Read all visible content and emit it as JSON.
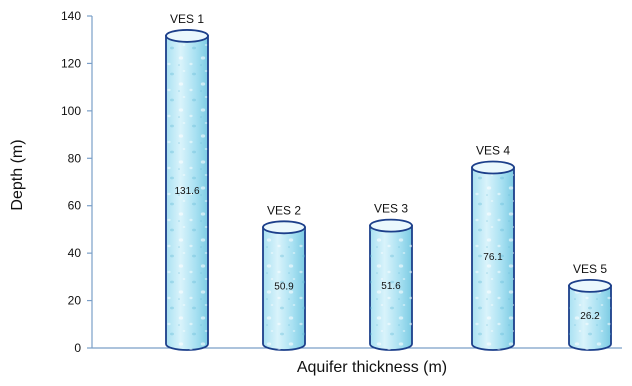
{
  "chart_data": {
    "type": "bar",
    "style": "cylinder",
    "categories": [
      "VES 1",
      "VES 2",
      "VES 3",
      "VES 4",
      "VES 5"
    ],
    "values": [
      131.6,
      50.9,
      51.6,
      76.1,
      26.2
    ],
    "value_labels": [
      "131.6",
      "50.9",
      "51.6",
      "76.1",
      "26.2"
    ],
    "xlabel": "Aquifer thickness (m)",
    "ylabel": "Depth (m)",
    "ylim": [
      0,
      140
    ],
    "yticks": [
      0,
      20,
      40,
      60,
      80,
      100,
      120,
      140
    ],
    "grid": false,
    "legend": "none",
    "colors": {
      "fill_light": "#d9f3fb",
      "fill_mid": "#a9e1f2",
      "fill_dark": "#7ccbe3",
      "outline": "#1c3f8a",
      "top_fill": "#eaf8fd",
      "axis": "#7a9fc8",
      "text": "#111111"
    }
  }
}
